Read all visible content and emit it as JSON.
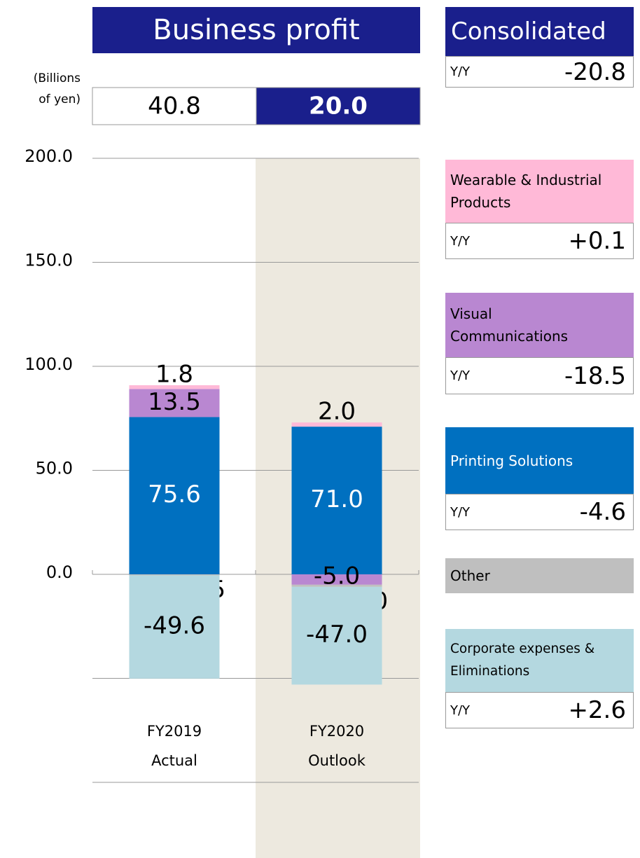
{
  "chart_data": {
    "type": "stacked_bar",
    "title": "Business profit",
    "unit_label": "(Billions of yen)",
    "categories": [
      "FY2019 Actual",
      "FY2020 Outlook"
    ],
    "totals": {
      "values": [
        40.8,
        20
      ],
      "value_labels": [
        "40.8",
        "20.0"
      ]
    },
    "ylim": [
      -100,
      200
    ],
    "yticks": [
      {
        "value": 200,
        "label": "200.0"
      },
      {
        "value": 150,
        "label": "150.0"
      },
      {
        "value": 100,
        "label": "100.0"
      },
      {
        "value": 50,
        "label": "50.0"
      },
      {
        "value": 0,
        "label": "0.0"
      },
      {
        "value": -50,
        "label": null
      },
      {
        "value": -100,
        "label": null
      }
    ],
    "grid": true,
    "series": [
      {
        "name": "Printing Solutions",
        "color": "#0070c0",
        "values": [
          75.6,
          71
        ],
        "value_labels": [
          "75.6",
          "71.0"
        ],
        "yoy": -4.6
      },
      {
        "name": "Visual Communications",
        "color": "#b987d1",
        "values": [
          13.5,
          -5
        ],
        "value_labels": [
          "13.5",
          "-5.0"
        ],
        "yoy": -18.5
      },
      {
        "name": "Wearable & Industrial Products",
        "color": "#ffb9d7",
        "values": [
          1.8,
          2
        ],
        "value_labels": [
          "1.8",
          "2.0"
        ],
        "yoy": {
          "value": 0.1,
          "label": "+0.1"
        }
      },
      {
        "name": "Other",
        "color": "#bfbfbf",
        "values": [
          -0.5,
          -1
        ],
        "value_labels": [
          "-0.5",
          "-1.0"
        ]
      },
      {
        "name": "Corporate expenses & Eliminations",
        "color": "#b4d8e0",
        "values": [
          -49.6,
          -47
        ],
        "value_labels": [
          "-49.6",
          "-47.0"
        ],
        "yoy": {
          "value": 2.6,
          "label": "+2.6"
        }
      }
    ],
    "consolidated": {
      "label": "Consolidated",
      "yoy": -20.8
    },
    "yoy_label": "Y/Y",
    "highlight_category": 1
  }
}
